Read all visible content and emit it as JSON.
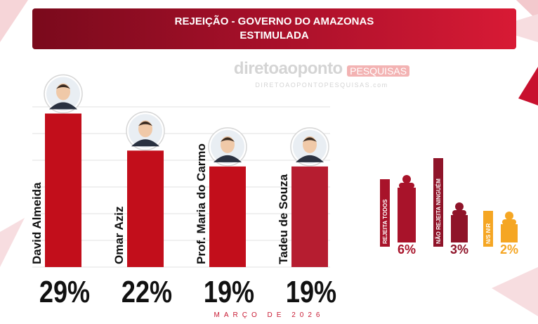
{
  "title": {
    "line1": "REJEIÇÃO - GOVERNO DO AMAZONAS",
    "line2": "ESTIMULADA"
  },
  "watermark": {
    "brand": "diretoaoponto",
    "tag": "PESQUISAS",
    "url": "DIRETOAOPONTOPESQUISAS.com"
  },
  "footer": "MARÇO DE 2026",
  "colors": {
    "banner_start": "#7a0a1c",
    "banner_end": "#d81a35",
    "bar": "#c20e1b",
    "bar_alt": "#b61d30",
    "side_dark": "#a8132a",
    "side_mid": "#8f1429",
    "side_orange": "#f5a623",
    "label": "#111111"
  },
  "icons": [
    "person-avatar-icon",
    "person-silhouette-icon"
  ],
  "chart_data": [
    {
      "type": "bar",
      "categories": [
        "David Almeida",
        "Omar Aziz",
        "Prof. Maria do Carmo",
        "Tadeu de Souza"
      ],
      "values": [
        29,
        22,
        19,
        19
      ],
      "value_labels": [
        "29%",
        "22%",
        "19%",
        "19%"
      ],
      "ylim": [
        0,
        30
      ],
      "grid": true
    },
    {
      "type": "bar",
      "categories": [
        "REJEITA TODOS",
        "NÃO REJEITA NINGUÉM",
        "N/S N\\R"
      ],
      "values": [
        6,
        3,
        2
      ],
      "value_labels": [
        "6%",
        "3%",
        "2%"
      ]
    }
  ]
}
